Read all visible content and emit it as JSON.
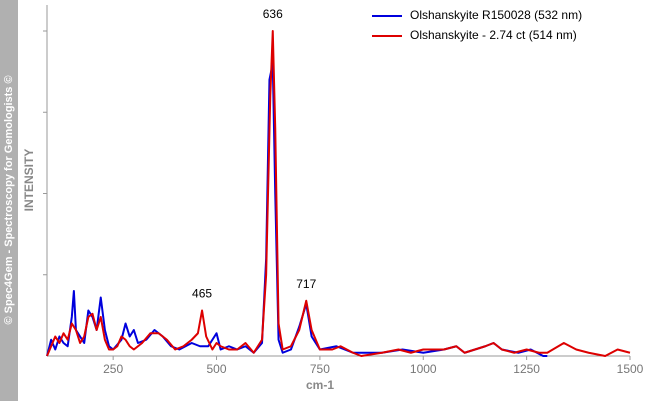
{
  "chart_data": {
    "type": "line",
    "watermark": "© Spec4Gem - Spectroscopy for Gemologists ©",
    "y_label": "INTENSITY",
    "x_label": "cm-1",
    "xlim": [
      90,
      1500
    ],
    "xticks": [
      250,
      500,
      750,
      1000,
      1250,
      1500
    ],
    "ylim": [
      0,
      1.08
    ],
    "yticks": [
      0.25,
      0.5,
      0.75,
      1.0
    ],
    "grid": false,
    "legend": "upper right",
    "annotations": [
      {
        "text": "636",
        "x": 636,
        "y": 1.0
      },
      {
        "text": "465",
        "x": 465,
        "y": 0.14
      },
      {
        "text": "717",
        "x": 717,
        "y": 0.17
      }
    ],
    "series": [
      {
        "name": "Olshanskyite R150028 (532 nm)",
        "color": "#0000dd",
        "x": [
          90,
          100,
          110,
          120,
          130,
          140,
          150,
          155,
          160,
          170,
          180,
          190,
          200,
          210,
          220,
          230,
          240,
          250,
          270,
          280,
          290,
          300,
          310,
          330,
          350,
          370,
          390,
          410,
          440,
          460,
          480,
          500,
          510,
          530,
          550,
          570,
          590,
          610,
          620,
          628,
          636,
          642,
          650,
          660,
          680,
          700,
          717,
          730,
          750,
          790,
          830,
          900,
          950,
          1000,
          1050,
          1080,
          1100,
          1150,
          1170,
          1190,
          1230,
          1260,
          1290,
          1300
        ],
        "values": [
          0.0,
          0.05,
          0.02,
          0.06,
          0.04,
          0.03,
          0.12,
          0.2,
          0.08,
          0.06,
          0.04,
          0.14,
          0.12,
          0.08,
          0.18,
          0.08,
          0.03,
          0.02,
          0.05,
          0.1,
          0.06,
          0.08,
          0.04,
          0.05,
          0.08,
          0.06,
          0.03,
          0.02,
          0.04,
          0.03,
          0.03,
          0.07,
          0.02,
          0.03,
          0.02,
          0.03,
          0.01,
          0.04,
          0.3,
          0.85,
          0.9,
          0.5,
          0.05,
          0.01,
          0.02,
          0.09,
          0.16,
          0.06,
          0.02,
          0.03,
          0.01,
          0.01,
          0.02,
          0.01,
          0.02,
          0.03,
          0.01,
          0.03,
          0.04,
          0.02,
          0.01,
          0.02,
          0.0,
          0.0
        ]
      },
      {
        "name": "Olshanskyite - 2.74 ct  (514 nm)",
        "color": "#dd0000",
        "x": [
          90,
          100,
          110,
          120,
          130,
          140,
          150,
          160,
          170,
          180,
          190,
          200,
          210,
          220,
          230,
          240,
          250,
          260,
          270,
          280,
          290,
          300,
          320,
          340,
          360,
          380,
          400,
          420,
          440,
          455,
          465,
          475,
          490,
          500,
          510,
          530,
          550,
          570,
          590,
          610,
          620,
          630,
          636,
          642,
          650,
          660,
          680,
          700,
          717,
          730,
          750,
          780,
          800,
          830,
          850,
          900,
          940,
          970,
          1000,
          1050,
          1080,
          1100,
          1150,
          1170,
          1190,
          1220,
          1250,
          1280,
          1300,
          1340,
          1370,
          1400,
          1440,
          1470,
          1500
        ],
        "values": [
          0.0,
          0.03,
          0.06,
          0.04,
          0.07,
          0.05,
          0.1,
          0.08,
          0.04,
          0.06,
          0.12,
          0.13,
          0.08,
          0.12,
          0.05,
          0.02,
          0.02,
          0.03,
          0.06,
          0.05,
          0.03,
          0.02,
          0.04,
          0.07,
          0.07,
          0.05,
          0.02,
          0.03,
          0.05,
          0.07,
          0.14,
          0.06,
          0.02,
          0.04,
          0.03,
          0.02,
          0.02,
          0.04,
          0.01,
          0.05,
          0.25,
          0.8,
          1.0,
          0.7,
          0.1,
          0.02,
          0.03,
          0.08,
          0.17,
          0.08,
          0.02,
          0.02,
          0.03,
          0.01,
          0.0,
          0.01,
          0.02,
          0.01,
          0.02,
          0.02,
          0.03,
          0.01,
          0.03,
          0.04,
          0.02,
          0.01,
          0.02,
          0.01,
          0.01,
          0.04,
          0.02,
          0.01,
          0.0,
          0.02,
          0.01
        ]
      }
    ]
  }
}
